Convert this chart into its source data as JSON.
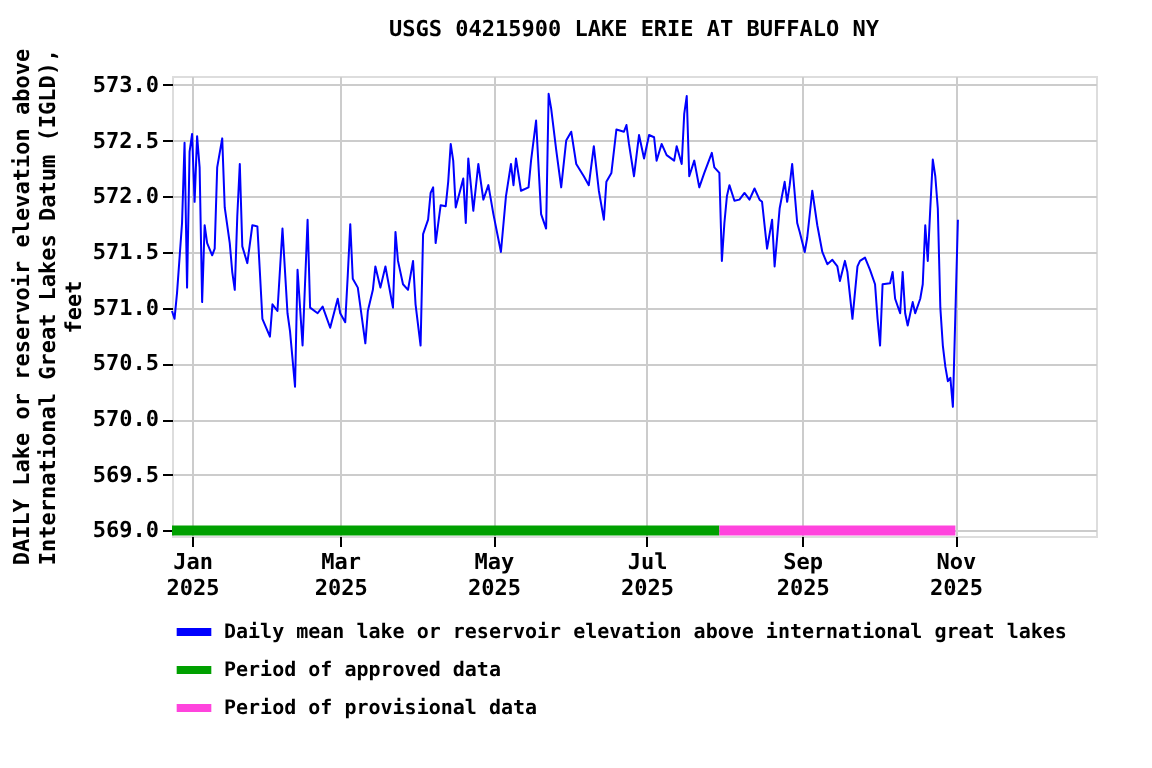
{
  "chart_data": {
    "type": "line",
    "title": "USGS 04215900 LAKE ERIE AT BUFFALO NY",
    "ylabel": "DAILY Lake or reservoir elevation above International Great Lakes Datum (IGLD), feet",
    "x": [
      "2024-12-24",
      "2024-12-25",
      "2024-12-26",
      "2024-12-28",
      "2024-12-29",
      "2024-12-30",
      "2024-12-31",
      "2025-01-01",
      "2025-01-02",
      "2025-01-03",
      "2025-01-04",
      "2025-01-05",
      "2025-01-06",
      "2025-01-07",
      "2025-01-09",
      "2025-01-10",
      "2025-01-11",
      "2025-01-13",
      "2025-01-14",
      "2025-01-16",
      "2025-01-17",
      "2025-01-18",
      "2025-01-19",
      "2025-01-20",
      "2025-01-21",
      "2025-01-23",
      "2025-01-25",
      "2025-01-27",
      "2025-01-28",
      "2025-01-29",
      "2025-02-01",
      "2025-02-02",
      "2025-02-04",
      "2025-02-06",
      "2025-02-08",
      "2025-02-09",
      "2025-02-11",
      "2025-02-12",
      "2025-02-14",
      "2025-02-16",
      "2025-02-17",
      "2025-02-20",
      "2025-02-22",
      "2025-02-25",
      "2025-02-28",
      "2025-03-01",
      "2025-03-03",
      "2025-03-04",
      "2025-03-05",
      "2025-03-06",
      "2025-03-08",
      "2025-03-11",
      "2025-03-12",
      "2025-03-14",
      "2025-03-15",
      "2025-03-17",
      "2025-03-19",
      "2025-03-22",
      "2025-03-23",
      "2025-03-24",
      "2025-03-26",
      "2025-03-28",
      "2025-03-30",
      "2025-03-31",
      "2025-04-02",
      "2025-04-03",
      "2025-04-05",
      "2025-04-06",
      "2025-04-07",
      "2025-04-08",
      "2025-04-10",
      "2025-04-12",
      "2025-04-13",
      "2025-04-14",
      "2025-04-15",
      "2025-04-16",
      "2025-04-19",
      "2025-04-20",
      "2025-04-21",
      "2025-04-23",
      "2025-04-25",
      "2025-04-27",
      "2025-04-29",
      "2025-05-01",
      "2025-05-04",
      "2025-05-06",
      "2025-05-08",
      "2025-05-09",
      "2025-05-10",
      "2025-05-12",
      "2025-05-15",
      "2025-05-16",
      "2025-05-18",
      "2025-05-20",
      "2025-05-22",
      "2025-05-23",
      "2025-05-24",
      "2025-05-26",
      "2025-05-28",
      "2025-05-30",
      "2025-06-01",
      "2025-06-03",
      "2025-06-06",
      "2025-06-08",
      "2025-06-10",
      "2025-06-12",
      "2025-06-14",
      "2025-06-15",
      "2025-06-17",
      "2025-06-19",
      "2025-06-22",
      "2025-06-23",
      "2025-06-24",
      "2025-06-26",
      "2025-06-28",
      "2025-06-30",
      "2025-07-02",
      "2025-07-04",
      "2025-07-05",
      "2025-07-07",
      "2025-07-09",
      "2025-07-12",
      "2025-07-13",
      "2025-07-15",
      "2025-07-16",
      "2025-07-17",
      "2025-07-18",
      "2025-07-20",
      "2025-07-22",
      "2025-07-24",
      "2025-07-27",
      "2025-07-28",
      "2025-07-30",
      "2025-07-31",
      "2025-08-01",
      "2025-08-02",
      "2025-08-03",
      "2025-08-05",
      "2025-08-07",
      "2025-08-09",
      "2025-08-11",
      "2025-08-13",
      "2025-08-15",
      "2025-08-16",
      "2025-08-18",
      "2025-08-20",
      "2025-08-21",
      "2025-08-23",
      "2025-08-25",
      "2025-08-26",
      "2025-08-27",
      "2025-08-28",
      "2025-08-30",
      "2025-08-31",
      "2025-09-02",
      "2025-09-03",
      "2025-09-05",
      "2025-09-07",
      "2025-09-09",
      "2025-09-11",
      "2025-09-13",
      "2025-09-15",
      "2025-09-16",
      "2025-09-18",
      "2025-09-19",
      "2025-09-20",
      "2025-09-21",
      "2025-09-23",
      "2025-09-24",
      "2025-09-26",
      "2025-09-28",
      "2025-09-30",
      "2025-10-01",
      "2025-10-02",
      "2025-10-03",
      "2025-10-06",
      "2025-10-07",
      "2025-10-08",
      "2025-10-10",
      "2025-10-11",
      "2025-10-12",
      "2025-10-13",
      "2025-10-15",
      "2025-10-16",
      "2025-10-18",
      "2025-10-19",
      "2025-10-20",
      "2025-10-21",
      "2025-10-22",
      "2025-10-23",
      "2025-10-24",
      "2025-10-25",
      "2025-10-26",
      "2025-10-27",
      "2025-10-28",
      "2025-10-29",
      "2025-10-30",
      "2025-10-31",
      "2025-11-01",
      "2025-11-02"
    ],
    "series": [
      {
        "name": "Daily mean lake or reservoir elevation above international great lakes",
        "color": "#0000ff",
        "values": [
          570.97,
          570.9,
          571.13,
          571.76,
          572.48,
          571.18,
          572.4,
          572.56,
          571.95,
          572.54,
          572.26,
          571.05,
          571.74,
          571.58,
          571.47,
          571.53,
          572.26,
          572.52,
          571.9,
          571.58,
          571.32,
          571.16,
          571.82,
          572.29,
          571.55,
          571.4,
          571.74,
          571.73,
          571.32,
          570.9,
          570.74,
          571.03,
          570.97,
          571.71,
          570.95,
          570.79,
          570.29,
          571.34,
          570.66,
          571.79,
          571.0,
          570.95,
          571.01,
          570.82,
          571.08,
          570.95,
          570.87,
          571.29,
          571.75,
          571.26,
          571.18,
          570.68,
          570.97,
          571.16,
          571.37,
          571.18,
          571.37,
          571.0,
          571.68,
          571.42,
          571.21,
          571.16,
          571.42,
          571.03,
          570.66,
          571.66,
          571.79,
          572.03,
          572.08,
          571.58,
          571.92,
          571.91,
          572.13,
          572.47,
          572.32,
          571.9,
          572.16,
          571.76,
          572.34,
          571.87,
          572.29,
          571.97,
          572.1,
          571.84,
          571.5,
          572.0,
          572.29,
          572.1,
          572.34,
          572.05,
          572.08,
          572.32,
          572.68,
          571.84,
          571.71,
          572.92,
          572.79,
          572.42,
          572.08,
          572.5,
          572.58,
          572.29,
          572.18,
          572.1,
          572.45,
          572.05,
          571.79,
          572.13,
          572.21,
          572.6,
          572.58,
          572.64,
          572.47,
          572.18,
          572.55,
          572.34,
          572.55,
          572.53,
          572.32,
          572.47,
          572.37,
          572.32,
          572.45,
          572.29,
          572.74,
          572.9,
          572.18,
          572.32,
          572.08,
          572.21,
          572.39,
          572.26,
          572.21,
          571.42,
          571.76,
          572.0,
          572.1,
          571.96,
          571.97,
          572.03,
          571.97,
          572.07,
          571.97,
          571.95,
          571.53,
          571.79,
          571.37,
          571.89,
          572.13,
          571.95,
          572.1,
          572.29,
          571.76,
          571.68,
          571.5,
          571.63,
          572.05,
          571.74,
          571.5,
          571.39,
          571.43,
          571.37,
          571.24,
          571.42,
          571.32,
          571.11,
          570.9,
          571.37,
          571.42,
          571.45,
          571.34,
          571.21,
          570.9,
          570.66,
          571.21,
          571.22,
          571.32,
          571.08,
          570.95,
          571.32,
          570.95,
          570.84,
          571.05,
          570.95,
          571.08,
          571.21,
          571.74,
          571.42,
          571.89,
          572.33,
          572.18,
          571.89,
          571.0,
          570.66,
          570.47,
          570.34,
          570.37,
          570.11,
          570.95,
          571.79
        ]
      },
      {
        "name": "Period of approved data",
        "color": "#00a000",
        "x": [
          "2024-12-24",
          "2025-07-30"
        ],
        "values": [
          569,
          569
        ]
      },
      {
        "name": "Period of provisional data",
        "color": "#ff44dd",
        "x": [
          "2025-07-30",
          "2025-11-01"
        ],
        "values": [
          569,
          569
        ]
      }
    ],
    "xlim": [
      "2024-12-24",
      "2025-12-27"
    ],
    "xticks": [
      {
        "value": "2025-01-01",
        "label": "Jan 2025"
      },
      {
        "value": "2025-03-01",
        "label": "Mar 2025"
      },
      {
        "value": "2025-05-01",
        "label": "May 2025"
      },
      {
        "value": "2025-07-01",
        "label": "Jul 2025"
      },
      {
        "value": "2025-09-01",
        "label": "Sep 2025"
      },
      {
        "value": "2025-11-01",
        "label": "Nov 2025"
      }
    ],
    "ylim": [
      568.95,
      573.08
    ],
    "yticks": [
      {
        "value": 569,
        "label": "569.0"
      },
      {
        "value": 569.5,
        "label": "569.5"
      },
      {
        "value": 570,
        "label": "570.0"
      },
      {
        "value": 570.5,
        "label": "570.5"
      },
      {
        "value": 571,
        "label": "571.0"
      },
      {
        "value": 571.5,
        "label": "571.5"
      },
      {
        "value": 572,
        "label": "572.0"
      },
      {
        "value": 572.5,
        "label": "572.5"
      },
      {
        "value": 573,
        "label": "573.0"
      }
    ],
    "grid": true,
    "legend": "bottom"
  }
}
